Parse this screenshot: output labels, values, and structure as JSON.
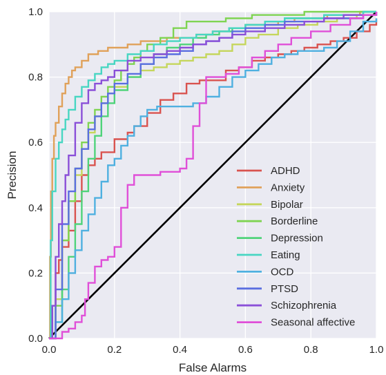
{
  "chart_data": {
    "type": "line",
    "title": "",
    "xlabel": "False Alarms",
    "ylabel": "Precision",
    "xlim": [
      0.0,
      1.0
    ],
    "ylim": [
      0.0,
      1.0
    ],
    "x_ticks": [
      "0.0",
      "0.2",
      "0.4",
      "0.6",
      "0.8",
      "1.0"
    ],
    "y_ticks": [
      "0.0",
      "0.2",
      "0.4",
      "0.6",
      "0.8",
      "1.0"
    ],
    "grid": true,
    "legend_placement": "lower-right",
    "diagonal": {
      "x": [
        0,
        1
      ],
      "y": [
        0,
        1
      ],
      "color": "#000000"
    },
    "series": [
      {
        "name": "ADHD",
        "color": "#d9534f",
        "x": [
          0,
          0.01,
          0.02,
          0.03,
          0.04,
          0.06,
          0.08,
          0.1,
          0.12,
          0.14,
          0.16,
          0.2,
          0.24,
          0.26,
          0.3,
          0.34,
          0.38,
          0.42,
          0.46,
          0.5,
          0.54,
          0.58,
          0.62,
          0.66,
          0.7,
          0.74,
          0.78,
          0.82,
          0.86,
          0.9,
          0.94,
          0.98,
          1.0
        ],
        "y": [
          0,
          0.1,
          0.2,
          0.24,
          0.28,
          0.33,
          0.42,
          0.5,
          0.53,
          0.55,
          0.57,
          0.61,
          0.63,
          0.65,
          0.69,
          0.73,
          0.75,
          0.78,
          0.79,
          0.79,
          0.82,
          0.83,
          0.85,
          0.86,
          0.87,
          0.88,
          0.89,
          0.9,
          0.91,
          0.92,
          0.94,
          0.96,
          0.98
        ]
      },
      {
        "name": "Anxiety",
        "color": "#e0a15a",
        "x": [
          0,
          0.003,
          0.006,
          0.01,
          0.015,
          0.02,
          0.03,
          0.04,
          0.05,
          0.06,
          0.07,
          0.08,
          0.1,
          0.12,
          0.15,
          0.18,
          0.2,
          0.24,
          0.28,
          0.32,
          0.36,
          0.4,
          0.45,
          0.5,
          0.55,
          0.6,
          0.65,
          0.7,
          0.75,
          0.8,
          0.85,
          0.9,
          0.95,
          1.0
        ],
        "y": [
          0,
          0.25,
          0.45,
          0.55,
          0.62,
          0.66,
          0.71,
          0.75,
          0.78,
          0.8,
          0.82,
          0.83,
          0.85,
          0.87,
          0.88,
          0.89,
          0.89,
          0.9,
          0.91,
          0.91,
          0.92,
          0.92,
          0.93,
          0.94,
          0.95,
          0.96,
          0.96,
          0.97,
          0.98,
          0.98,
          0.99,
          0.99,
          1.0,
          1.0
        ]
      },
      {
        "name": "Bipolar",
        "color": "#c5d65c",
        "x": [
          0,
          0.02,
          0.04,
          0.06,
          0.08,
          0.1,
          0.12,
          0.14,
          0.16,
          0.18,
          0.2,
          0.24,
          0.28,
          0.32,
          0.36,
          0.4,
          0.44,
          0.48,
          0.52,
          0.56,
          0.6,
          0.64,
          0.7,
          0.76,
          0.82,
          0.88,
          0.94,
          1.0
        ],
        "y": [
          0,
          0.12,
          0.3,
          0.42,
          0.5,
          0.58,
          0.63,
          0.68,
          0.72,
          0.75,
          0.77,
          0.8,
          0.82,
          0.83,
          0.84,
          0.85,
          0.86,
          0.87,
          0.88,
          0.9,
          0.92,
          0.93,
          0.95,
          0.96,
          0.97,
          0.98,
          0.99,
          1.0
        ]
      },
      {
        "name": "Borderline",
        "color": "#7fd452",
        "x": [
          0,
          0.02,
          0.04,
          0.06,
          0.08,
          0.1,
          0.12,
          0.14,
          0.16,
          0.18,
          0.2,
          0.22,
          0.24,
          0.26,
          0.28,
          0.3,
          0.34,
          0.38,
          0.42,
          0.46,
          0.5,
          0.54,
          0.58,
          0.62,
          0.66,
          0.72,
          0.78,
          0.84,
          0.9,
          0.96,
          1.0
        ],
        "y": [
          0,
          0.1,
          0.3,
          0.42,
          0.52,
          0.6,
          0.66,
          0.7,
          0.74,
          0.77,
          0.79,
          0.82,
          0.84,
          0.86,
          0.88,
          0.9,
          0.92,
          0.95,
          0.97,
          0.97,
          0.97,
          0.98,
          0.98,
          0.99,
          0.99,
          0.99,
          1.0,
          1.0,
          1.0,
          1.0,
          1.0
        ]
      },
      {
        "name": "Depression",
        "color": "#4fd37a",
        "x": [
          0,
          0.02,
          0.04,
          0.06,
          0.08,
          0.1,
          0.12,
          0.14,
          0.16,
          0.18,
          0.2,
          0.24,
          0.28,
          0.32,
          0.36,
          0.4,
          0.44,
          0.48,
          0.52,
          0.56,
          0.6,
          0.66,
          0.72,
          0.78,
          0.84,
          0.9,
          0.96,
          1.0
        ],
        "y": [
          0,
          0.05,
          0.15,
          0.25,
          0.35,
          0.45,
          0.55,
          0.62,
          0.68,
          0.72,
          0.76,
          0.8,
          0.84,
          0.87,
          0.89,
          0.9,
          0.92,
          0.93,
          0.94,
          0.95,
          0.96,
          0.97,
          0.98,
          0.98,
          0.99,
          0.99,
          1.0,
          1.0
        ]
      },
      {
        "name": "Eating",
        "color": "#48d6c2",
        "x": [
          0,
          0.005,
          0.01,
          0.02,
          0.03,
          0.04,
          0.05,
          0.06,
          0.08,
          0.1,
          0.12,
          0.14,
          0.16,
          0.18,
          0.2,
          0.24,
          0.28,
          0.32,
          0.36,
          0.4,
          0.45,
          0.5,
          0.55,
          0.6,
          0.66,
          0.72,
          0.78,
          0.84,
          0.9,
          0.96,
          1.0
        ],
        "y": [
          0,
          0.3,
          0.45,
          0.55,
          0.6,
          0.64,
          0.67,
          0.7,
          0.74,
          0.77,
          0.79,
          0.81,
          0.83,
          0.84,
          0.85,
          0.87,
          0.88,
          0.9,
          0.91,
          0.92,
          0.93,
          0.94,
          0.95,
          0.96,
          0.97,
          0.98,
          0.98,
          0.99,
          0.99,
          1.0,
          1.0
        ]
      },
      {
        "name": "OCD",
        "color": "#4fb0e0",
        "x": [
          0,
          0.02,
          0.04,
          0.06,
          0.08,
          0.1,
          0.12,
          0.14,
          0.16,
          0.18,
          0.2,
          0.22,
          0.24,
          0.26,
          0.28,
          0.3,
          0.33,
          0.36,
          0.4,
          0.44,
          0.48,
          0.52,
          0.56,
          0.6,
          0.64,
          0.68,
          0.72,
          0.76,
          0.8,
          0.84,
          0.88,
          0.92,
          0.96,
          1.0
        ],
        "y": [
          0,
          0.05,
          0.12,
          0.2,
          0.27,
          0.33,
          0.38,
          0.43,
          0.48,
          0.53,
          0.55,
          0.59,
          0.62,
          0.65,
          0.68,
          0.7,
          0.71,
          0.71,
          0.71,
          0.72,
          0.74,
          0.77,
          0.8,
          0.82,
          0.84,
          0.86,
          0.87,
          0.88,
          0.88,
          0.89,
          0.91,
          0.94,
          0.97,
          0.98
        ]
      },
      {
        "name": "PTSD",
        "color": "#5a6ee0",
        "x": [
          0,
          0.02,
          0.04,
          0.06,
          0.08,
          0.1,
          0.12,
          0.14,
          0.16,
          0.18,
          0.2,
          0.24,
          0.28,
          0.32,
          0.36,
          0.4,
          0.44,
          0.48,
          0.52,
          0.56,
          0.6,
          0.66,
          0.72,
          0.78,
          0.84,
          0.9,
          0.96,
          1.0
        ],
        "y": [
          0,
          0.15,
          0.35,
          0.45,
          0.52,
          0.58,
          0.64,
          0.68,
          0.72,
          0.75,
          0.78,
          0.81,
          0.84,
          0.86,
          0.87,
          0.88,
          0.9,
          0.91,
          0.92,
          0.94,
          0.95,
          0.96,
          0.97,
          0.97,
          0.98,
          0.98,
          0.99,
          1.0
        ]
      },
      {
        "name": "Schizophrenia",
        "color": "#8a4fd8",
        "x": [
          0,
          0.01,
          0.02,
          0.03,
          0.04,
          0.05,
          0.06,
          0.08,
          0.1,
          0.12,
          0.14,
          0.16,
          0.18,
          0.2,
          0.24,
          0.28,
          0.32,
          0.36,
          0.4,
          0.44,
          0.48,
          0.52,
          0.56,
          0.6,
          0.66,
          0.72,
          0.78,
          0.84,
          0.9,
          0.96,
          1.0
        ],
        "y": [
          0,
          0.1,
          0.25,
          0.35,
          0.42,
          0.5,
          0.56,
          0.66,
          0.72,
          0.76,
          0.78,
          0.79,
          0.8,
          0.82,
          0.85,
          0.86,
          0.87,
          0.88,
          0.89,
          0.9,
          0.91,
          0.92,
          0.93,
          0.94,
          0.95,
          0.96,
          0.97,
          0.98,
          0.99,
          0.99,
          1.0
        ]
      },
      {
        "name": "Seasonal affective",
        "color": "#e04fd8",
        "x": [
          0,
          0.02,
          0.04,
          0.06,
          0.08,
          0.1,
          0.11,
          0.12,
          0.14,
          0.16,
          0.18,
          0.2,
          0.22,
          0.24,
          0.26,
          0.3,
          0.34,
          0.38,
          0.4,
          0.42,
          0.44,
          0.46,
          0.48,
          0.5,
          0.54,
          0.58,
          0.62,
          0.66,
          0.7,
          0.74,
          0.8,
          0.86,
          0.92,
          0.96,
          1.0
        ],
        "y": [
          0,
          0.0,
          0.02,
          0.03,
          0.05,
          0.07,
          0.12,
          0.17,
          0.22,
          0.24,
          0.25,
          0.28,
          0.4,
          0.47,
          0.5,
          0.5,
          0.51,
          0.51,
          0.52,
          0.55,
          0.65,
          0.72,
          0.8,
          0.8,
          0.81,
          0.83,
          0.86,
          0.88,
          0.9,
          0.92,
          0.94,
          0.96,
          0.98,
          0.99,
          1.0
        ]
      }
    ]
  }
}
